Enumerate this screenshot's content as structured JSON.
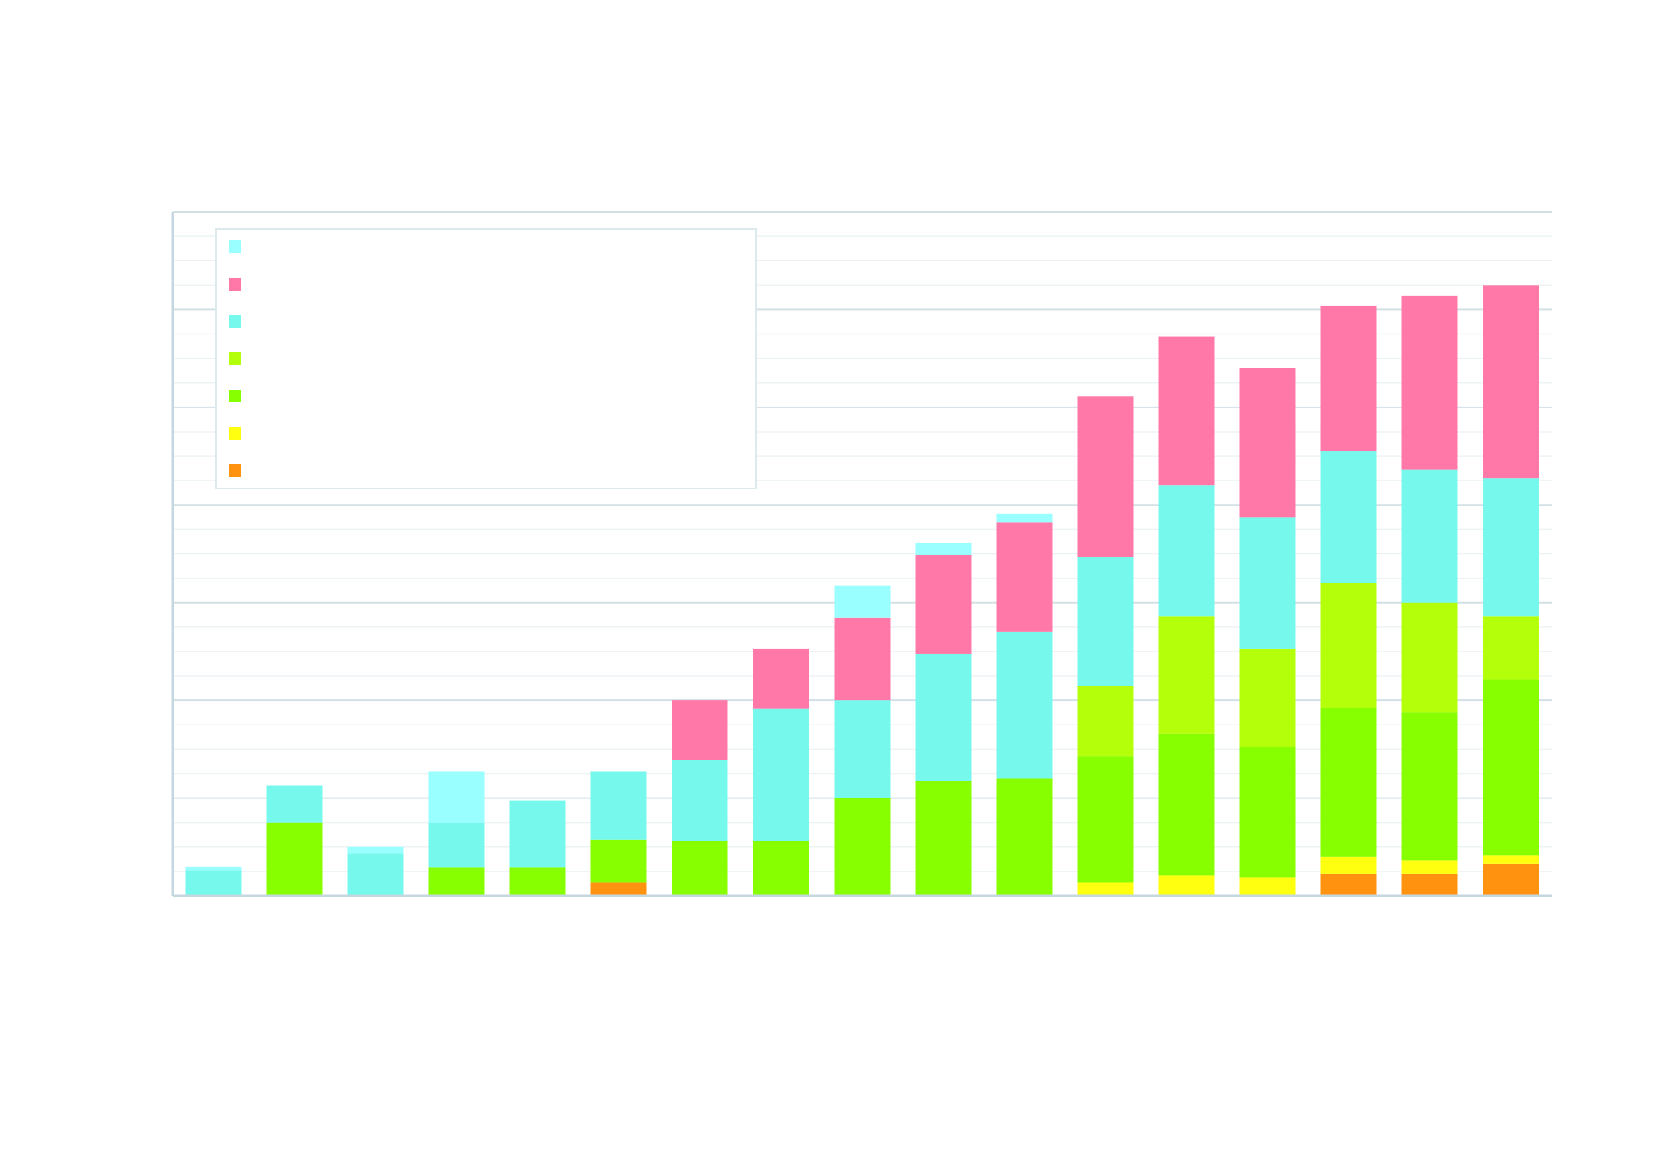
{
  "chart_data": {
    "type": "bar",
    "stacked": true,
    "title": "",
    "xlabel": "",
    "ylabel": "",
    "ylim": [
      0,
      28
    ],
    "major_tick_step": 4,
    "minor_tick_step": 1,
    "grid": true,
    "legend_placement": "top-left",
    "bar_count": 17,
    "series": [
      {
        "color": "#ff9310",
        "values": [
          0,
          0,
          0,
          0,
          0,
          0.55,
          0,
          0,
          0,
          0,
          0,
          0,
          0,
          0,
          0.9,
          0.9,
          1.3
        ]
      },
      {
        "color": "#ffff10",
        "values": [
          0,
          0,
          0,
          0,
          0,
          0,
          0,
          0,
          0,
          0,
          0,
          0.55,
          0.85,
          0.75,
          0.7,
          0.55,
          0.35
        ]
      },
      {
        "color": "#88ff00",
        "values": [
          0,
          3.0,
          0,
          1.15,
          1.15,
          1.75,
          2.25,
          2.25,
          4.0,
          4.7,
          4.8,
          5.15,
          5.8,
          5.35,
          6.1,
          6.05,
          7.2
        ]
      },
      {
        "color": "#b4ff0a",
        "values": [
          0,
          0,
          0,
          0,
          0,
          0,
          0,
          0,
          0,
          0,
          0,
          2.9,
          4.8,
          4.0,
          5.1,
          4.5,
          2.6
        ]
      },
      {
        "color": "#77f8ec",
        "values": [
          1.05,
          1.5,
          1.75,
          1.85,
          2.75,
          2.8,
          3.3,
          5.4,
          4.0,
          5.2,
          6.0,
          5.25,
          5.35,
          5.4,
          5.4,
          5.45,
          5.65
        ]
      },
      {
        "color": "#ff78a8",
        "values": [
          0,
          0,
          0,
          0,
          0,
          0,
          2.45,
          2.45,
          3.4,
          4.05,
          4.5,
          6.6,
          6.1,
          6.1,
          5.95,
          7.1,
          7.9
        ]
      },
      {
        "color": "#99ffff",
        "values": [
          0.15,
          0,
          0.25,
          2.1,
          0,
          0,
          0,
          0,
          1.3,
          0.5,
          0.35,
          0,
          0,
          0,
          0,
          0,
          0
        ]
      }
    ],
    "legend_order": [
      6,
      5,
      4,
      3,
      2,
      1,
      0
    ]
  },
  "colors": {
    "grid_major": "#d3e0e6",
    "grid_minor": "#edf3f5",
    "axis": "#c5d8e0",
    "legend_border": "#dceaee"
  }
}
